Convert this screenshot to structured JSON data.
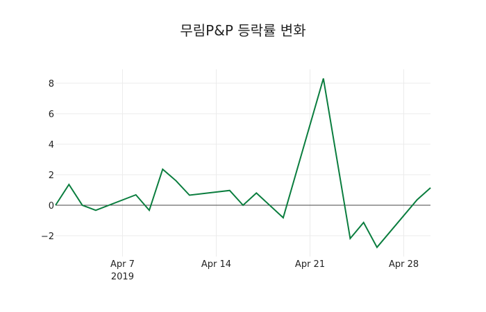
{
  "chart_data": {
    "type": "line",
    "title": "무림P&P 등락률 변화",
    "xlabel": "",
    "ylabel": "",
    "ylim": [
      -3.2,
      9.0
    ],
    "yticks": [
      -2,
      0,
      2,
      4,
      6,
      8
    ],
    "ytick_labels": [
      "−2",
      "0",
      "2",
      "4",
      "6",
      "8"
    ],
    "xticks": [
      "2019-04-07",
      "2019-04-14",
      "2019-04-21",
      "2019-04-28"
    ],
    "xtick_labels": [
      "Apr 7",
      "Apr 14",
      "Apr 21",
      "Apr 28"
    ],
    "xtick_sublabel": "2019",
    "grid": true,
    "legend": "none",
    "line_color": "#0a7d3e",
    "zero_line_color": "#444444",
    "series": [
      {
        "name": "등락률",
        "x": [
          "2019-04-02",
          "2019-04-03",
          "2019-04-04",
          "2019-04-05",
          "2019-04-08",
          "2019-04-09",
          "2019-04-10",
          "2019-04-11",
          "2019-04-12",
          "2019-04-15",
          "2019-04-16",
          "2019-04-17",
          "2019-04-19",
          "2019-04-22",
          "2019-04-24",
          "2019-04-25",
          "2019-04-26",
          "2019-04-29",
          "2019-04-30"
        ],
        "values": [
          0,
          1.36,
          0,
          -0.33,
          0.68,
          -0.33,
          2.36,
          1.6,
          0.66,
          0.97,
          0,
          0.8,
          -0.82,
          8.31,
          -2.18,
          -1.13,
          -2.76,
          0.36,
          1.14
        ]
      }
    ]
  }
}
